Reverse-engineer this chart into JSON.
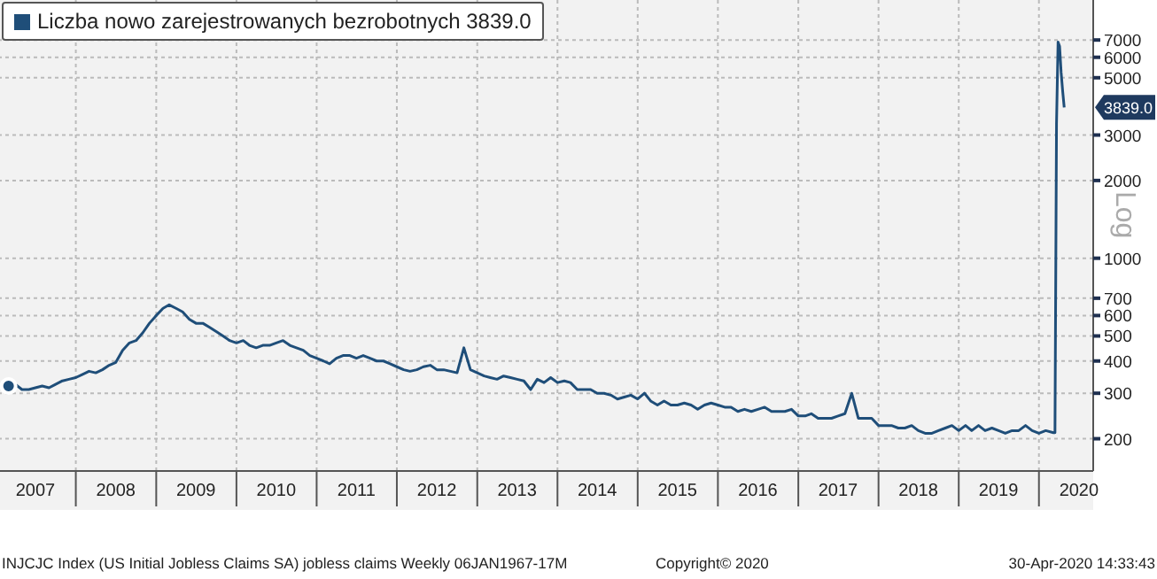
{
  "chart_data": {
    "type": "line",
    "x": [
      "2007-03",
      "2007-04",
      "2007-05",
      "2007-06",
      "2007-07",
      "2007-08",
      "2007-09",
      "2007-10",
      "2007-11",
      "2007-12",
      "2008-01",
      "2008-02",
      "2008-03",
      "2008-04",
      "2008-05",
      "2008-06",
      "2008-07",
      "2008-08",
      "2008-09",
      "2008-10",
      "2008-11",
      "2008-12",
      "2009-01",
      "2009-02",
      "2009-03",
      "2009-04",
      "2009-05",
      "2009-06",
      "2009-07",
      "2009-08",
      "2009-09",
      "2009-10",
      "2009-11",
      "2009-12",
      "2010-01",
      "2010-02",
      "2010-03",
      "2010-04",
      "2010-05",
      "2010-06",
      "2010-07",
      "2010-08",
      "2010-09",
      "2010-10",
      "2010-11",
      "2010-12",
      "2011-01",
      "2011-02",
      "2011-03",
      "2011-04",
      "2011-05",
      "2011-06",
      "2011-07",
      "2011-08",
      "2011-09",
      "2011-10",
      "2011-11",
      "2011-12",
      "2012-01",
      "2012-02",
      "2012-03",
      "2012-04",
      "2012-05",
      "2012-06",
      "2012-07",
      "2012-08",
      "2012-09",
      "2012-10",
      "2012-11",
      "2012-12",
      "2013-01",
      "2013-02",
      "2013-03",
      "2013-04",
      "2013-05",
      "2013-06",
      "2013-07",
      "2013-08",
      "2013-09",
      "2013-10",
      "2013-11",
      "2013-12",
      "2014-01",
      "2014-02",
      "2014-03",
      "2014-04",
      "2014-05",
      "2014-06",
      "2014-07",
      "2014-08",
      "2014-09",
      "2014-10",
      "2014-11",
      "2014-12",
      "2015-01",
      "2015-02",
      "2015-03",
      "2015-04",
      "2015-05",
      "2015-06",
      "2015-07",
      "2015-08",
      "2015-09",
      "2015-10",
      "2015-11",
      "2015-12",
      "2016-01",
      "2016-02",
      "2016-03",
      "2016-04",
      "2016-05",
      "2016-06",
      "2016-07",
      "2016-08",
      "2016-09",
      "2016-10",
      "2016-11",
      "2016-12",
      "2017-01",
      "2017-02",
      "2017-03",
      "2017-04",
      "2017-05",
      "2017-06",
      "2017-07",
      "2017-08",
      "2017-09",
      "2017-10",
      "2017-11",
      "2017-12",
      "2018-01",
      "2018-02",
      "2018-03",
      "2018-04",
      "2018-05",
      "2018-06",
      "2018-07",
      "2018-08",
      "2018-09",
      "2018-10",
      "2018-11",
      "2018-12",
      "2019-01",
      "2019-02",
      "2019-03",
      "2019-04",
      "2019-05",
      "2019-06",
      "2019-07",
      "2019-08",
      "2019-09",
      "2019-10",
      "2019-11",
      "2019-12",
      "2020-01",
      "2020-02",
      "2020-03-07",
      "2020-03-14",
      "2020-03-21",
      "2020-03-28",
      "2020-04-04",
      "2020-04-11",
      "2020-04-18",
      "2020-04-25"
    ],
    "series": [
      {
        "name": "Liczba nowo zarejestrowanych bezrobotnych 3839.0",
        "color": "#1f4e79",
        "values": [
          320,
          325,
          310,
          310,
          315,
          320,
          315,
          325,
          335,
          340,
          345,
          355,
          365,
          360,
          370,
          385,
          395,
          440,
          470,
          480,
          515,
          560,
          600,
          640,
          660,
          640,
          620,
          580,
          560,
          560,
          540,
          520,
          500,
          480,
          470,
          480,
          460,
          450,
          460,
          460,
          470,
          480,
          460,
          450,
          440,
          420,
          410,
          400,
          390,
          410,
          420,
          420,
          410,
          420,
          410,
          400,
          400,
          390,
          380,
          370,
          365,
          370,
          380,
          385,
          370,
          370,
          365,
          360,
          450,
          370,
          360,
          350,
          345,
          340,
          350,
          345,
          340,
          335,
          310,
          340,
          330,
          345,
          330,
          335,
          330,
          310,
          310,
          310,
          300,
          300,
          295,
          285,
          290,
          295,
          285,
          300,
          280,
          270,
          280,
          270,
          270,
          275,
          270,
          260,
          270,
          275,
          270,
          265,
          265,
          255,
          260,
          255,
          260,
          265,
          255,
          255,
          255,
          260,
          245,
          245,
          250,
          240,
          240,
          240,
          245,
          250,
          300,
          240,
          240,
          240,
          225,
          225,
          225,
          220,
          220,
          225,
          215,
          210,
          210,
          215,
          220,
          225,
          215,
          225,
          215,
          225,
          215,
          220,
          215,
          210,
          215,
          215,
          225,
          215,
          210,
          215,
          211,
          211,
          3307,
          6867,
          6615,
          5237,
          4442,
          3839
        ]
      }
    ],
    "xlim": [
      "2007-01-21",
      "2020-09-04"
    ],
    "xticks": [
      {
        "value": "2007-07-01",
        "label": "2007"
      },
      {
        "value": "2008-01-01",
        "label": null
      },
      {
        "value": "2008-07-01",
        "label": "2008"
      },
      {
        "value": "2009-01-01",
        "label": null
      },
      {
        "value": "2009-07-01",
        "label": "2009"
      },
      {
        "value": "2010-01-01",
        "label": null
      },
      {
        "value": "2010-07-01",
        "label": "2010"
      },
      {
        "value": "2011-01-01",
        "label": null
      },
      {
        "value": "2011-07-01",
        "label": "2011"
      },
      {
        "value": "2012-01-01",
        "label": null
      },
      {
        "value": "2012-07-01",
        "label": "2012"
      },
      {
        "value": "2013-01-01",
        "label": null
      },
      {
        "value": "2013-07-01",
        "label": "2013"
      },
      {
        "value": "2014-01-01",
        "label": null
      },
      {
        "value": "2014-07-01",
        "label": "2014"
      },
      {
        "value": "2015-01-01",
        "label": null
      },
      {
        "value": "2015-07-01",
        "label": "2015"
      },
      {
        "value": "2016-01-01",
        "label": null
      },
      {
        "value": "2016-07-01",
        "label": "2016"
      },
      {
        "value": "2017-01-01",
        "label": null
      },
      {
        "value": "2017-07-01",
        "label": "2017"
      },
      {
        "value": "2018-01-01",
        "label": null
      },
      {
        "value": "2018-07-01",
        "label": "2018"
      },
      {
        "value": "2019-01-01",
        "label": null
      },
      {
        "value": "2019-07-01",
        "label": "2019"
      },
      {
        "value": "2020-01-01",
        "label": null
      },
      {
        "value": "2020-07-01",
        "label": "2020"
      }
    ],
    "ylim": [
      150,
      10000
    ],
    "yticks": [
      200,
      300,
      400,
      500,
      600,
      700,
      1000,
      2000,
      3000,
      5000,
      6000,
      7000
    ],
    "log": "y",
    "grid": true,
    "legend": "top left",
    "annotations": [
      {
        "text": "3839.0",
        "x": "2020-04-25",
        "y": 3839
      },
      "Log",
      "INJCJC Index (US Initial Jobless Claims SA) jobless claims  Weekly 06JAN1967-17M",
      "Copyright© 2020",
      "30-Apr-2020 14:33:43"
    ]
  }
}
